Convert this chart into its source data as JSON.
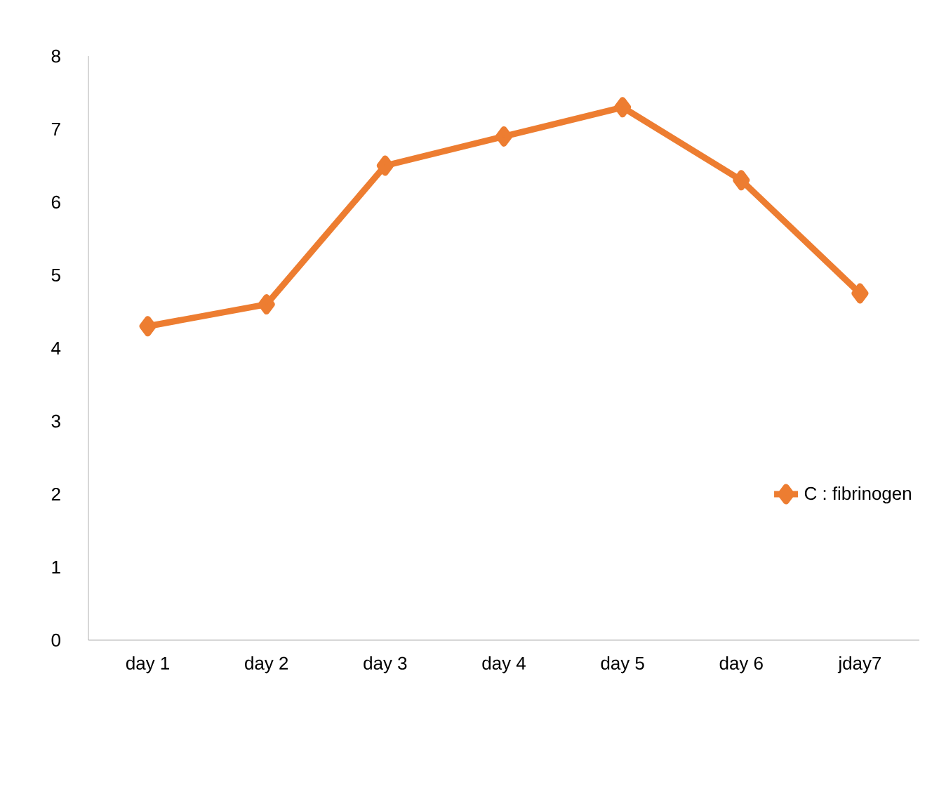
{
  "chart_data": {
    "type": "line",
    "categories": [
      "day 1",
      "day 2",
      "day 3",
      "day 4",
      "day 5",
      "day 6",
      "jday7"
    ],
    "series": [
      {
        "name": "C : fibrinogen",
        "color": "#ed7d31",
        "values": [
          4.3,
          4.6,
          6.5,
          6.9,
          7.3,
          6.3,
          4.75
        ]
      }
    ],
    "ylim": [
      0,
      8
    ],
    "yticks": [
      0,
      1,
      2,
      3,
      4,
      5,
      6,
      7,
      8
    ],
    "grid": false,
    "legend": "right",
    "marker": "diamond",
    "line_style": "solid"
  }
}
